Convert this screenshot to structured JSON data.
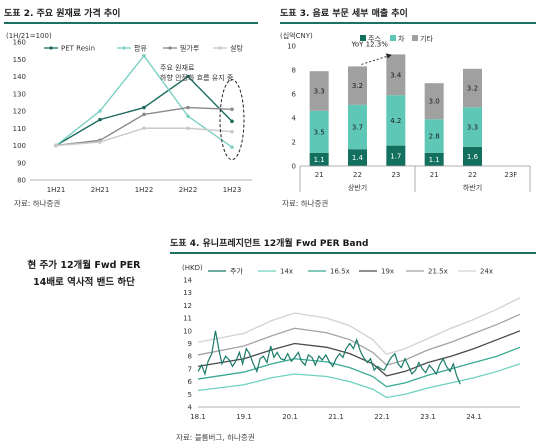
{
  "callout": {
    "line1": "현 주가 12개월 Fwd PER",
    "line2": "14배로 역사적 밴드 하단"
  },
  "chart_data": [
    {
      "id": "chart2",
      "type": "line",
      "title": "도표 2. 주요 원재료 가격 추이",
      "source": "자료: 하나증권",
      "yunit": "(1H/21=100)",
      "categories": [
        "1H21",
        "2H21",
        "1H22",
        "2H22",
        "1H23"
      ],
      "ylim": [
        80,
        160
      ],
      "yticks": [
        80,
        90,
        100,
        110,
        120,
        130,
        140,
        150,
        160
      ],
      "series": [
        {
          "name": "PET Resin",
          "color": "#1d6b5e",
          "values": [
            100,
            115,
            122,
            140,
            114
          ]
        },
        {
          "name": "팜유",
          "color": "#7cd0c4",
          "values": [
            100,
            120,
            152,
            117,
            99
          ]
        },
        {
          "name": "밀가루",
          "color": "#8a8a8a",
          "values": [
            100,
            103,
            118,
            122,
            121
          ]
        },
        {
          "name": "설탕",
          "color": "#c9c9c9",
          "values": [
            100,
            102,
            110,
            110,
            108
          ]
        }
      ],
      "annotation": [
        "주요 원재료",
        "하향 안정화 흐름 유지 중"
      ]
    },
    {
      "id": "chart3",
      "type": "bar",
      "title": "도표 3. 음료 부문 세부 매출 추이",
      "source": "자료: 하나증권",
      "yunit": "(십억CNY)",
      "ylim": [
        0,
        10
      ],
      "yticks": [
        0,
        2,
        4,
        6,
        8,
        10
      ],
      "categories": [
        "21",
        "22",
        "23",
        "21",
        "22",
        "23F"
      ],
      "groups": [
        "상반기",
        "하반기"
      ],
      "series": [
        {
          "name": "주스",
          "color": "#13705f",
          "values": [
            1.1,
            1.4,
            1.7,
            1.1,
            1.6,
            null
          ]
        },
        {
          "name": "차",
          "color": "#5ec7b6",
          "values": [
            3.5,
            3.7,
            4.2,
            2.8,
            3.3,
            null
          ]
        },
        {
          "name": "기타",
          "color": "#a0a0a0",
          "values": [
            3.3,
            3.2,
            3.4,
            3.0,
            3.2,
            null
          ]
        }
      ],
      "annotation": "YoY 12.3%"
    },
    {
      "id": "chart4",
      "type": "line",
      "title": "도표 4. 유니프레지던트 12개월 Fwd PER Band",
      "source": "자료: 블룸버그, 하나증권",
      "yunit": "(HKD)",
      "ylim": [
        4,
        14
      ],
      "yticks": [
        4,
        5,
        6,
        7,
        8,
        9,
        10,
        11,
        12,
        13,
        14
      ],
      "xticks": [
        "18.1",
        "19.1",
        "20.1",
        "21.1",
        "22.1",
        "23.1",
        "24.1"
      ],
      "xlim": [
        2018.0,
        2025.0
      ],
      "band_x": [
        2018.0,
        2019.0,
        2019.6,
        2020.1,
        2020.8,
        2021.3,
        2021.8,
        2022.1,
        2022.5,
        2023.0,
        2023.5,
        2024.0,
        2024.5,
        2025.0
      ],
      "bands": [
        {
          "name": "14x",
          "color": "#6fd1c0",
          "values": [
            5.3,
            5.75,
            6.3,
            6.6,
            6.4,
            6.0,
            5.4,
            4.75,
            5.0,
            5.5,
            5.9,
            6.3,
            6.8,
            7.4
          ]
        },
        {
          "name": "16.5x",
          "color": "#3aaa94",
          "values": [
            6.2,
            6.75,
            7.4,
            7.8,
            7.55,
            7.1,
            6.4,
            5.6,
            5.9,
            6.5,
            7.0,
            7.5,
            8.0,
            8.7
          ]
        },
        {
          "name": "19x",
          "color": "#4a4a4a",
          "values": [
            7.2,
            7.8,
            8.5,
            9.0,
            8.7,
            8.2,
            7.4,
            6.45,
            6.8,
            7.5,
            8.0,
            8.6,
            9.3,
            10.0
          ]
        },
        {
          "name": "21.5x",
          "color": "#a3a3a3",
          "values": [
            8.1,
            8.8,
            9.6,
            10.2,
            9.85,
            9.3,
            8.3,
            7.3,
            7.7,
            8.5,
            9.1,
            9.8,
            10.5,
            11.3
          ]
        },
        {
          "name": "24x",
          "color": "#d2d2d2",
          "values": [
            9.1,
            9.8,
            10.8,
            11.4,
            11.0,
            10.4,
            9.3,
            8.15,
            8.6,
            9.4,
            10.2,
            10.9,
            11.7,
            12.6
          ]
        }
      ],
      "price": {
        "name": "주가",
        "color": "#1a7b6a",
        "x": [
          2018.0,
          2018.08,
          2018.15,
          2018.22,
          2018.3,
          2018.38,
          2018.45,
          2018.52,
          2018.6,
          2018.68,
          2018.75,
          2018.82,
          2018.9,
          2018.97,
          2019.05,
          2019.12,
          2019.2,
          2019.28,
          2019.35,
          2019.42,
          2019.5,
          2019.58,
          2019.65,
          2019.72,
          2019.8,
          2019.88,
          2019.95,
          2020.03,
          2020.1,
          2020.18,
          2020.25,
          2020.33,
          2020.4,
          2020.48,
          2020.55,
          2020.63,
          2020.7,
          2020.78,
          2020.85,
          2020.93,
          2021.0,
          2021.08,
          2021.15,
          2021.22,
          2021.3,
          2021.38,
          2021.45,
          2021.53,
          2021.6,
          2021.68,
          2021.75,
          2021.83,
          2021.9,
          2021.98,
          2022.05,
          2022.12,
          2022.2,
          2022.28,
          2022.35,
          2022.42,
          2022.5,
          2022.58,
          2022.65,
          2022.73,
          2022.8,
          2022.88,
          2022.95,
          2023.03,
          2023.1,
          2023.18,
          2023.25,
          2023.33,
          2023.4,
          2023.48,
          2023.55,
          2023.62,
          2023.7
        ],
        "values": [
          6.8,
          7.3,
          6.6,
          7.6,
          8.2,
          10.0,
          8.6,
          7.4,
          8.0,
          7.7,
          7.2,
          7.6,
          8.3,
          7.4,
          8.6,
          8.2,
          7.4,
          6.8,
          7.8,
          8.0,
          7.5,
          8.8,
          7.9,
          8.3,
          7.8,
          7.7,
          8.2,
          7.6,
          7.9,
          8.3,
          7.6,
          7.3,
          8.1,
          7.9,
          7.3,
          8.0,
          7.7,
          8.1,
          7.6,
          7.2,
          7.8,
          8.2,
          7.9,
          8.6,
          9.0,
          8.6,
          9.3,
          8.4,
          7.9,
          7.5,
          7.8,
          6.9,
          7.2,
          7.0,
          6.9,
          7.4,
          7.9,
          8.2,
          7.4,
          7.1,
          7.8,
          7.2,
          6.6,
          6.9,
          7.5,
          7.0,
          6.7,
          7.3,
          7.0,
          6.6,
          7.3,
          7.8,
          7.2,
          6.8,
          7.4,
          6.5,
          5.8
        ]
      }
    }
  ]
}
